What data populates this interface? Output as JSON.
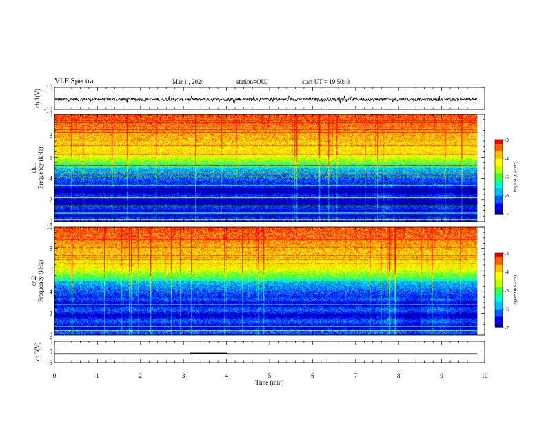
{
  "header": {
    "title": "VLF Spectra",
    "date": "Mar.1 , 2024",
    "station": "station=OUJ",
    "start_ut": "start UT = 19:50: 0"
  },
  "colors": {
    "colormap": [
      "#0000a0",
      "#0000ff",
      "#0060ff",
      "#00c0ff",
      "#00ffc0",
      "#40ff40",
      "#c0ff00",
      "#ffff00",
      "#ffc000",
      "#ff6000",
      "#ff0000"
    ]
  },
  "chart_data": [
    {
      "id": "ch1-waveform",
      "type": "line",
      "ylabel": "ch.1(V)",
      "ylim": [
        -10,
        10
      ],
      "yticks": [
        "10",
        "-10"
      ],
      "x": [
        0,
        9.83
      ],
      "baseline": 0,
      "amplitude_typical": 1.5,
      "amplitude_spikes": 4
    },
    {
      "id": "ch1-spectrogram",
      "type": "heatmap",
      "ylabel": "Frequency (kHz)",
      "ylabel_top": "ch.1",
      "ylim": [
        0,
        10
      ],
      "yticks": [
        "0",
        "2",
        "4",
        "6",
        "8",
        "10"
      ],
      "xlim": [
        0,
        10
      ],
      "data_extent_x": 9.83,
      "colorbar": {
        "label": "log(PSD)(V²/Hz)",
        "range": [
          -7,
          -3
        ],
        "ticks": [
          "-3",
          "-4",
          "-5",
          "-6",
          "-7"
        ]
      }
    },
    {
      "id": "ch2-spectrogram",
      "type": "heatmap",
      "ylabel": "Frequency (kHz)",
      "ylabel_top": "ch.2",
      "ylim": [
        0,
        10
      ],
      "yticks": [
        "0",
        "2",
        "4",
        "6",
        "8",
        "10"
      ],
      "xlim": [
        0,
        10
      ],
      "data_extent_x": 9.83,
      "colorbar": {
        "label": "log(PSD)(V²/Hz)",
        "range": [
          -7,
          -3
        ],
        "ticks": [
          "-3",
          "-4",
          "-5",
          "-6",
          "-7"
        ]
      }
    },
    {
      "id": "ch3-trace",
      "type": "line",
      "ylabel": "ch.3(V)",
      "ylim": [
        -5,
        5
      ],
      "yticks": [
        "5",
        "0",
        "-5"
      ],
      "x": [
        0,
        3.17,
        3.17,
        4.0,
        4.0,
        9.83
      ],
      "y": [
        -0.9,
        -0.9,
        -0.6,
        -0.6,
        -0.9,
        -0.9
      ],
      "xlabel": "Time (min)",
      "xticks": [
        "0",
        "1",
        "2",
        "3",
        "4",
        "5",
        "6",
        "7",
        "8",
        "9",
        "10"
      ]
    }
  ]
}
